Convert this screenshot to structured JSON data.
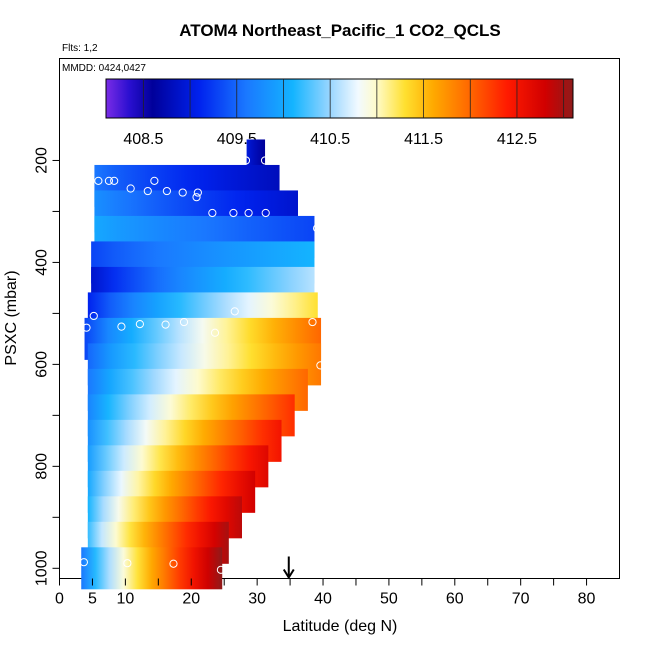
{
  "chart_data": {
    "type": "heatmap",
    "title": "ATOM4 Northeast_Pacific_1 CO2_QCLS",
    "flights_note": "Flts: 1,2",
    "dates_note": "MMDD: 0424,0427",
    "xlabel": "Latitude (deg N)",
    "ylabel": "PSXC (mbar)",
    "xlim": [
      0,
      85
    ],
    "ylim": [
      1020,
      0
    ],
    "x_ticks": [
      0,
      5,
      10,
      20,
      30,
      40,
      50,
      60,
      70,
      80
    ],
    "y_ticks": [
      200,
      400,
      600,
      800,
      1000
    ],
    "colorbar": {
      "range": [
        408.1,
        413.1
      ],
      "tick_values": [
        408.5,
        409.5,
        410.5,
        411.5,
        412.5
      ],
      "tick_labels": [
        "408.5",
        "409.5",
        "410.5",
        "411.5",
        "412.5"
      ],
      "stops": [
        [
          408.1,
          "#7a2ce6"
        ],
        [
          408.35,
          "#2a0fd0"
        ],
        [
          408.6,
          "#00009a"
        ],
        [
          409.1,
          "#0022ee"
        ],
        [
          409.6,
          "#1a78ff"
        ],
        [
          410.1,
          "#14b4ff"
        ],
        [
          410.5,
          "#9ad6ff"
        ],
        [
          410.8,
          "#f2faff"
        ],
        [
          411.0,
          "#fffbc8"
        ],
        [
          411.3,
          "#ffe030"
        ],
        [
          411.6,
          "#ffaa00"
        ],
        [
          412.0,
          "#ff6600"
        ],
        [
          412.4,
          "#ff1a00"
        ],
        [
          412.8,
          "#d10000"
        ],
        [
          413.1,
          "#8f1a1a"
        ]
      ]
    },
    "layers": [
      {
        "p": 200,
        "x0": 28.4,
        "x1": 31.2,
        "v0": 409.0,
        "v1": 408.6
      },
      {
        "p": 250,
        "x0": 5.3,
        "x1": 33.4,
        "v0": 409.6,
        "v1": 408.8
      },
      {
        "p": 300,
        "x0": 5.3,
        "x1": 36.2,
        "v0": 409.8,
        "v1": 408.9
      },
      {
        "p": 350,
        "x0": 5.3,
        "x1": 38.7,
        "v0": 410.0,
        "v1": 409.3
      },
      {
        "p": 400,
        "x0": 4.8,
        "x1": 38.7,
        "v0": 409.3,
        "v1": 410.1
      },
      {
        "p": 450,
        "x0": 4.8,
        "x1": 38.7,
        "v0": 408.9,
        "v1": 410.6
      },
      {
        "p": 500,
        "x0": 4.3,
        "x1": 39.2,
        "v0": 409.1,
        "v1": 411.3
      },
      {
        "p": 550,
        "x0": 3.8,
        "x1": 39.7,
        "v0": 409.3,
        "v1": 412.0
      },
      {
        "p": 600,
        "x0": 4.3,
        "x1": 39.7,
        "v0": 409.5,
        "v1": 411.9
      },
      {
        "p": 650,
        "x0": 4.3,
        "x1": 37.7,
        "v0": 409.6,
        "v1": 412.0
      },
      {
        "p": 700,
        "x0": 4.3,
        "x1": 35.7,
        "v0": 409.7,
        "v1": 412.3
      },
      {
        "p": 750,
        "x0": 4.3,
        "x1": 33.7,
        "v0": 409.8,
        "v1": 412.5
      },
      {
        "p": 800,
        "x0": 4.3,
        "x1": 31.7,
        "v0": 409.9,
        "v1": 412.7
      },
      {
        "p": 850,
        "x0": 4.3,
        "x1": 29.7,
        "v0": 410.0,
        "v1": 412.8
      },
      {
        "p": 900,
        "x0": 4.3,
        "x1": 27.7,
        "v0": 410.1,
        "v1": 412.9
      },
      {
        "p": 950,
        "x0": 4.3,
        "x1": 25.7,
        "v0": 410.2,
        "v1": 413.0
      },
      {
        "p": 1000,
        "x0": 3.3,
        "x1": 24.7,
        "v0": 409.6,
        "v1": 413.1
      }
    ],
    "points": [
      {
        "x": 28.3,
        "y": 200
      },
      {
        "x": 31.2,
        "y": 200
      },
      {
        "x": 5.9,
        "y": 240
      },
      {
        "x": 7.5,
        "y": 240
      },
      {
        "x": 8.3,
        "y": 240
      },
      {
        "x": 14.4,
        "y": 240
      },
      {
        "x": 10.8,
        "y": 255
      },
      {
        "x": 13.4,
        "y": 260
      },
      {
        "x": 16.3,
        "y": 260
      },
      {
        "x": 18.7,
        "y": 263
      },
      {
        "x": 21.0,
        "y": 263
      },
      {
        "x": 20.8,
        "y": 272
      },
      {
        "x": 23.2,
        "y": 303
      },
      {
        "x": 26.4,
        "y": 303
      },
      {
        "x": 28.7,
        "y": 303
      },
      {
        "x": 31.3,
        "y": 303
      },
      {
        "x": 39.1,
        "y": 333
      },
      {
        "x": 5.2,
        "y": 505
      },
      {
        "x": 26.6,
        "y": 496
      },
      {
        "x": 4.1,
        "y": 528
      },
      {
        "x": 9.4,
        "y": 526
      },
      {
        "x": 12.2,
        "y": 521
      },
      {
        "x": 16.1,
        "y": 522
      },
      {
        "x": 18.9,
        "y": 517
      },
      {
        "x": 23.6,
        "y": 538
      },
      {
        "x": 38.4,
        "y": 517
      },
      {
        "x": 39.6,
        "y": 602
      },
      {
        "x": 3.7,
        "y": 988
      },
      {
        "x": 10.3,
        "y": 990
      },
      {
        "x": 17.3,
        "y": 991
      },
      {
        "x": 24.5,
        "y": 1003
      }
    ],
    "arrow_lat": 34.8
  }
}
